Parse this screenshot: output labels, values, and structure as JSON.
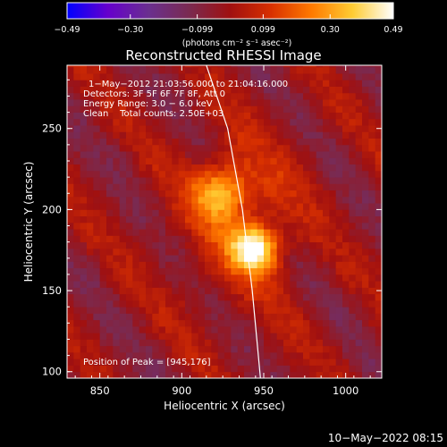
{
  "chart_data": {
    "type": "heatmap",
    "title": "Reconstructed RHESSI Image",
    "xlabel": "Heliocentric X (arcsec)",
    "ylabel": "Heliocentric Y (arcsec)",
    "xlim": [
      830,
      1022
    ],
    "ylim": [
      96,
      289
    ],
    "x_ticks": [
      850,
      900,
      950,
      1000
    ],
    "y_ticks": [
      100,
      150,
      200,
      250
    ],
    "colorbar": {
      "label": "(photons cm⁻² s⁻¹ asec⁻²)",
      "min": -0.49,
      "max": 0.49,
      "tick_values": [
        -0.49,
        -0.3,
        -0.099,
        0.099,
        0.3,
        0.49
      ],
      "tick_labels": [
        "−0.49",
        "−0.30",
        "−0.099",
        "0.099",
        "0.30",
        "0.49"
      ]
    },
    "annotations": [
      "1−May−2012 21:03:56.000 to 21:04:16.000",
      "Detectors: 3F 5F 6F 7F 8F, Att 0",
      "Energy Range: 3.0 − 6.0 keV",
      "Clean    Total counts: 2.50E+03"
    ],
    "peak_label": "Position of Peak = [945,176]",
    "peak": {
      "x": 945,
      "y": 176
    },
    "sources": [
      {
        "x": 945,
        "y": 176,
        "amplitude": 0.49
      },
      {
        "x": 925,
        "y": 211,
        "amplitude": 0.3
      }
    ],
    "limb_arc": [
      [
        915,
        289
      ],
      [
        928,
        250
      ],
      [
        937,
        200
      ],
      [
        943,
        150
      ],
      [
        948,
        96
      ]
    ],
    "colors": {
      "background": "#000000",
      "limb": "#ffffff",
      "colormap": [
        "#0000ff",
        "#6600cc",
        "#6a2f8f",
        "#7a2a50",
        "#a01010",
        "#d83000",
        "#ff7a00",
        "#ffcc33",
        "#ffffff"
      ]
    }
  },
  "footer": {
    "timestamp": "10−May−2022 08:15"
  }
}
